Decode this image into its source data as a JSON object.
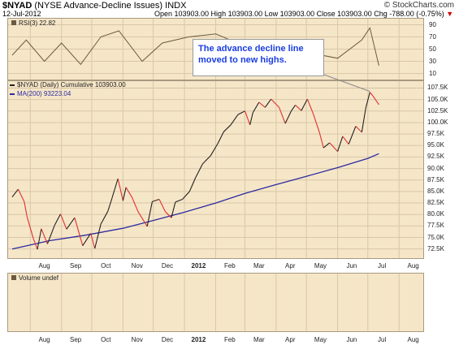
{
  "header": {
    "symbol": "$NYAD",
    "name": "(NYSE Advance-Decline Issues)",
    "index_tag": "INDX",
    "date": "12-Jul-2012",
    "ohlc": "Open 103903.00  High 103903.00  Low 103903.00  Close 103903.00  Chg -788.00 (-0.75%)",
    "brand": "© StockCharts.com",
    "arrow": "▼"
  },
  "panels": {
    "rsi_label": "RSI(3) 22.82",
    "main_label": "$NYAD (Daily) Cumulative 103903.00",
    "ma_label": "MA(200) 93223.04",
    "volume_label": "Volume undef"
  },
  "annotation": {
    "text_line1": "The advance decline line",
    "text_line2": "moved to new highs."
  },
  "colors": {
    "panel_bg": "#f6e6c8",
    "price_up": "#222222",
    "price_down": "#e03030",
    "ma": "#2a2aa0",
    "annotation_text": "#1a3de0"
  },
  "chart_data": {
    "type": "line",
    "title": "$NYAD (NYSE Advance-Decline Issues)",
    "x_labels": [
      "Aug",
      "Sep",
      "Oct",
      "Nov",
      "Dec",
      "2012",
      "Feb",
      "Mar",
      "Apr",
      "May",
      "Jun",
      "Jul",
      "Aug"
    ],
    "rsi_axis_ticks": [
      "90",
      "70",
      "50",
      "30",
      "10"
    ],
    "y_axis_ticks": [
      "107.5K",
      "105.0K",
      "102.5K",
      "100.0K",
      "97.5K",
      "95.0K",
      "92.5K",
      "90.0K",
      "87.5K",
      "85.0K",
      "82.5K",
      "80.0K",
      "77.5K",
      "75.0K",
      "72.5K"
    ],
    "ylim": [
      70500,
      109000
    ],
    "series": [
      {
        "name": "$NYAD (Daily) Cumulative",
        "points": [
          [
            "2011-07-14",
            83800
          ],
          [
            "2011-07-20",
            85500
          ],
          [
            "2011-07-26",
            82800
          ],
          [
            "2011-07-29",
            79300
          ],
          [
            "2011-08-04",
            74800
          ],
          [
            "2011-08-08",
            72400
          ],
          [
            "2011-08-12",
            76900
          ],
          [
            "2011-08-18",
            73600
          ],
          [
            "2011-08-25",
            77600
          ],
          [
            "2011-08-31",
            80100
          ],
          [
            "2011-09-06",
            76800
          ],
          [
            "2011-09-14",
            79300
          ],
          [
            "2011-09-22",
            73200
          ],
          [
            "2011-09-30",
            75900
          ],
          [
            "2011-10-04",
            72600
          ],
          [
            "2011-10-10",
            77900
          ],
          [
            "2011-10-17",
            80700
          ],
          [
            "2011-10-21",
            83500
          ],
          [
            "2011-10-27",
            87800
          ],
          [
            "2011-11-01",
            83000
          ],
          [
            "2011-11-04",
            85900
          ],
          [
            "2011-11-10",
            83700
          ],
          [
            "2011-11-16",
            80600
          ],
          [
            "2011-11-25",
            77400
          ],
          [
            "2011-11-30",
            82800
          ],
          [
            "2011-12-07",
            83300
          ],
          [
            "2011-12-13",
            80600
          ],
          [
            "2011-12-19",
            79300
          ],
          [
            "2011-12-23",
            82700
          ],
          [
            "2011-12-30",
            83300
          ],
          [
            "2012-01-06",
            85000
          ],
          [
            "2012-01-12",
            88000
          ],
          [
            "2012-01-19",
            91000
          ],
          [
            "2012-01-27",
            92800
          ],
          [
            "2012-02-03",
            95400
          ],
          [
            "2012-02-09",
            98000
          ],
          [
            "2012-02-16",
            99500
          ],
          [
            "2012-02-23",
            101700
          ],
          [
            "2012-03-01",
            102500
          ],
          [
            "2012-03-06",
            99500
          ],
          [
            "2012-03-09",
            102200
          ],
          [
            "2012-03-15",
            104400
          ],
          [
            "2012-03-21",
            103300
          ],
          [
            "2012-03-27",
            105100
          ],
          [
            "2012-04-04",
            103300
          ],
          [
            "2012-04-10",
            99800
          ],
          [
            "2012-04-16",
            102500
          ],
          [
            "2012-04-20",
            103800
          ],
          [
            "2012-04-26",
            102600
          ],
          [
            "2012-05-02",
            105100
          ],
          [
            "2012-05-08",
            101800
          ],
          [
            "2012-05-14",
            97800
          ],
          [
            "2012-05-18",
            94500
          ],
          [
            "2012-05-24",
            95600
          ],
          [
            "2012-06-01",
            93700
          ],
          [
            "2012-06-06",
            97000
          ],
          [
            "2012-06-12",
            95300
          ],
          [
            "2012-06-19",
            99200
          ],
          [
            "2012-06-25",
            97900
          ],
          [
            "2012-06-29",
            103200
          ],
          [
            "2012-07-03",
            106600
          ],
          [
            "2012-07-06",
            105800
          ],
          [
            "2012-07-12",
            103900
          ]
        ]
      },
      {
        "name": "MA(200)",
        "points": [
          [
            "2011-07-14",
            72500
          ],
          [
            "2011-08-20",
            74300
          ],
          [
            "2011-09-25",
            75500
          ],
          [
            "2011-11-01",
            77000
          ],
          [
            "2011-12-01",
            78700
          ],
          [
            "2012-01-01",
            80500
          ],
          [
            "2012-02-01",
            82500
          ],
          [
            "2012-03-01",
            84600
          ],
          [
            "2012-04-01",
            86500
          ],
          [
            "2012-05-01",
            88300
          ],
          [
            "2012-06-01",
            90200
          ],
          [
            "2012-07-01",
            92200
          ],
          [
            "2012-07-12",
            93223
          ]
        ]
      },
      {
        "name": "RSI(3)",
        "points": [
          [
            "2011-07-14",
            40
          ],
          [
            "2011-07-28",
            65
          ],
          [
            "2011-08-15",
            30
          ],
          [
            "2011-09-01",
            60
          ],
          [
            "2011-09-20",
            25
          ],
          [
            "2011-10-10",
            70
          ],
          [
            "2011-10-28",
            80
          ],
          [
            "2011-11-20",
            30
          ],
          [
            "2011-12-10",
            60
          ],
          [
            "2012-01-05",
            70
          ],
          [
            "2012-02-01",
            75
          ],
          [
            "2012-03-01",
            55
          ],
          [
            "2012-04-01",
            60
          ],
          [
            "2012-05-01",
            45
          ],
          [
            "2012-06-01",
            35
          ],
          [
            "2012-06-25",
            65
          ],
          [
            "2012-07-03",
            85
          ],
          [
            "2012-07-12",
            22.82
          ]
        ]
      }
    ]
  }
}
